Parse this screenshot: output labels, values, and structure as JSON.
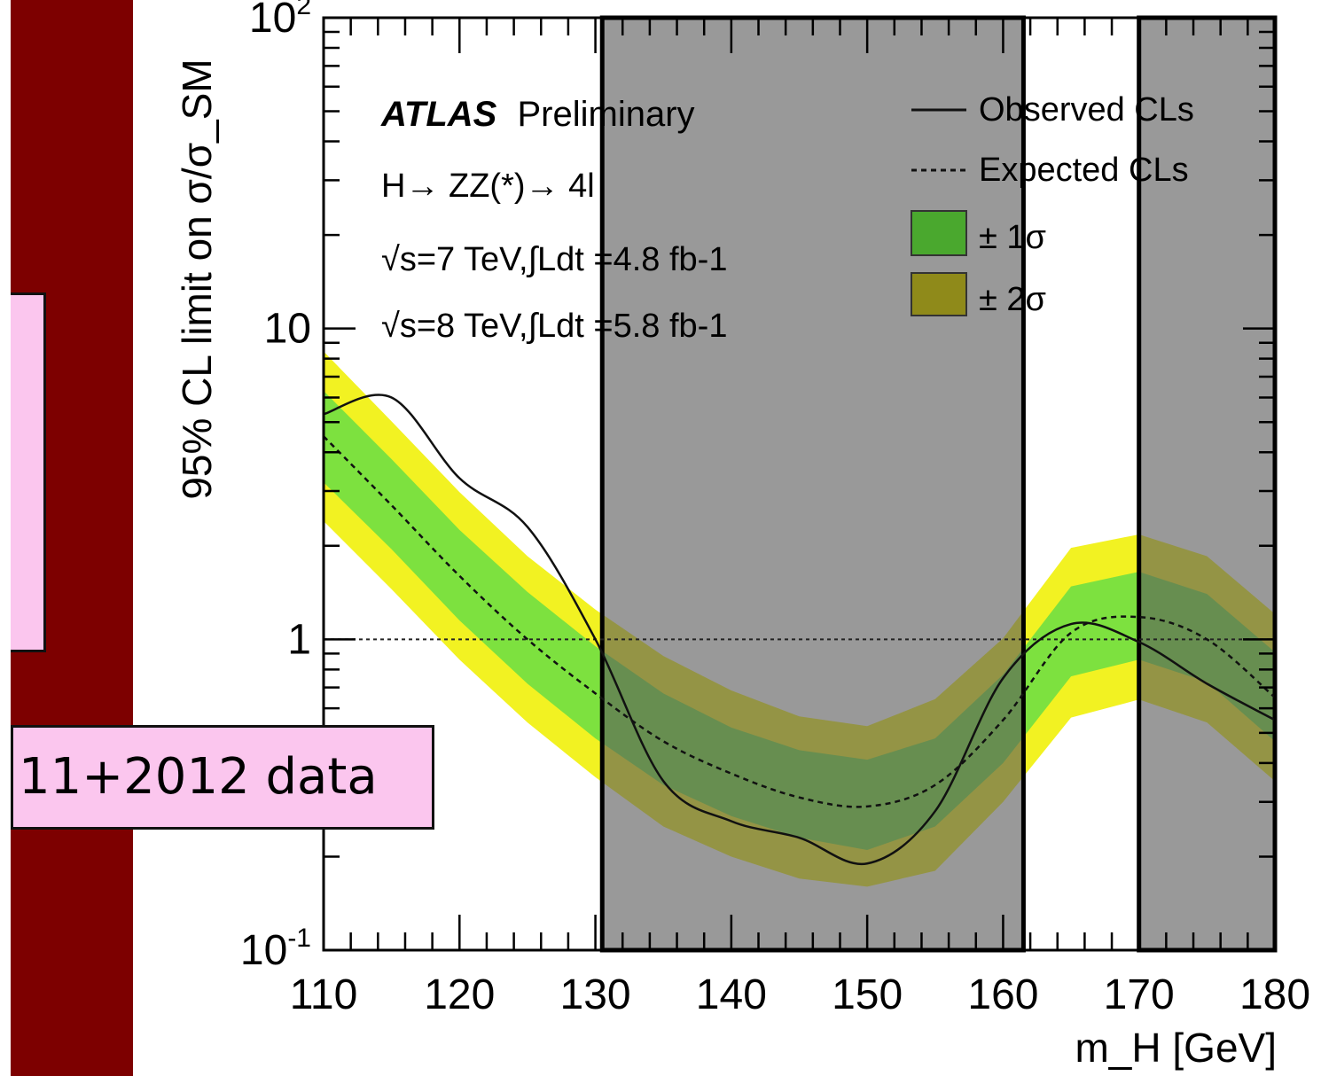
{
  "slide": {
    "label": "11+2012 data",
    "colors": {
      "sidebar": "#7d0000",
      "label_bg": "#fbc6ee"
    }
  },
  "chart_data": {
    "type": "line",
    "yscale": "log",
    "xlim": [
      110,
      180
    ],
    "ylim": [
      0.1,
      100
    ],
    "xticks": [
      "110",
      "120",
      "130",
      "140",
      "150",
      "160",
      "170",
      "180"
    ],
    "xlabel": "m_H [GeV]",
    "ylabel": "95% CL limit on σ/σ_SM",
    "annotations": {
      "experiment": "ATLAS",
      "status": "Preliminary",
      "channel": "H→ ZZ(*)→ 4l",
      "lumi_7": "√s=7 TeV,∫Ldt =4.8 fb-1",
      "lumi_8": "√s=8 TeV,∫Ldt =5.8 fb-1"
    },
    "legend": {
      "position": "top-right",
      "observed": "Observed CLs",
      "expected": "Expected CLs",
      "one_sigma": "± 1σ",
      "two_sigma": "± 2σ"
    },
    "reference_line": 1,
    "shaded_regions": [
      [
        130.5,
        161.5
      ],
      [
        170,
        180
      ]
    ],
    "x": [
      110,
      115,
      120,
      125,
      130,
      135,
      140,
      145,
      150,
      155,
      160,
      165,
      170,
      175,
      180
    ],
    "series": [
      {
        "name": "Observed CLs",
        "values": [
          5.3,
          6.0,
          3.3,
          2.3,
          1.0,
          0.35,
          0.26,
          0.23,
          0.19,
          0.28,
          0.75,
          1.12,
          0.98,
          0.72,
          0.55
        ]
      },
      {
        "name": "Expected CLs",
        "values": [
          4.5,
          2.7,
          1.6,
          1.0,
          0.67,
          0.47,
          0.37,
          0.31,
          0.29,
          0.34,
          0.55,
          1.05,
          1.18,
          1.0,
          0.65
        ]
      }
    ],
    "band_1sigma": {
      "lower": [
        3.2,
        1.95,
        1.15,
        0.72,
        0.48,
        0.34,
        0.27,
        0.23,
        0.21,
        0.25,
        0.4,
        0.76,
        0.86,
        0.73,
        0.47
      ],
      "upper": [
        6.3,
        3.8,
        2.25,
        1.42,
        0.95,
        0.67,
        0.52,
        0.44,
        0.41,
        0.48,
        0.77,
        1.48,
        1.65,
        1.4,
        0.91
      ]
    },
    "band_2sigma": {
      "lower": [
        2.4,
        1.45,
        0.86,
        0.54,
        0.36,
        0.25,
        0.2,
        0.17,
        0.16,
        0.18,
        0.3,
        0.56,
        0.64,
        0.54,
        0.35
      ]
    },
    "colors": {
      "two_sigma": "#f2f222",
      "one_sigma": "#7de13f",
      "shade": "#5a5a5a",
      "line": "#111111"
    }
  }
}
